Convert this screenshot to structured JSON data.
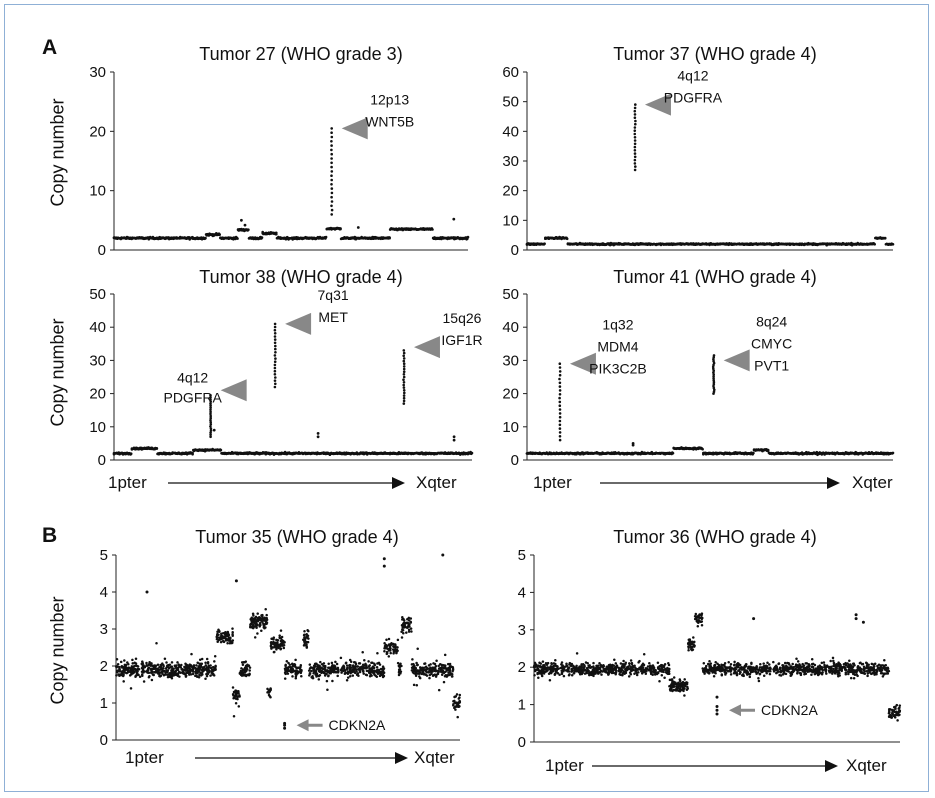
{
  "figure": {
    "panel_a_label": "A",
    "panel_b_label": "B",
    "ylabel": "Copy number",
    "start_label": "1pter",
    "end_label": "Xqter",
    "marker_color": "#111111",
    "arrowhead_color": "#888888"
  },
  "chart_data": [
    {
      "type": "scatter",
      "title": "Tumor 27 (WHO grade 3)",
      "ylabel": "Copy number",
      "ylim": [
        0,
        30
      ],
      "yticks": [
        0,
        10,
        20,
        30
      ],
      "xlim": [
        0,
        1
      ],
      "baseline": {
        "level": 2,
        "noise": 0.3,
        "segments": [
          [
            0.26,
            0.3,
            2.6
          ],
          [
            0.35,
            0.38,
            3.4
          ],
          [
            0.42,
            0.46,
            2.8
          ],
          [
            0.6,
            0.64,
            3.6
          ],
          [
            0.78,
            0.9,
            3.5
          ]
        ]
      },
      "scattered": [
        [
          0.36,
          5.0
        ],
        [
          0.37,
          4.2
        ],
        [
          0.96,
          5.2
        ],
        [
          0.69,
          3.8
        ]
      ],
      "amplicons": [
        {
          "x": 0.615,
          "ymin": 6,
          "ymax": 20.5,
          "label": [
            "12p13",
            "WNT5B"
          ],
          "arrow_y": 20.5
        }
      ]
    },
    {
      "type": "scatter",
      "title": "Tumor 37 (WHO grade 4)",
      "ylabel": "",
      "ylim": [
        0,
        60
      ],
      "yticks": [
        0,
        10,
        20,
        30,
        40,
        50,
        60
      ],
      "xlim": [
        0,
        1
      ],
      "baseline": {
        "level": 2,
        "noise": 0.5,
        "segments": [
          [
            0.05,
            0.11,
            4.0
          ],
          [
            0.95,
            0.98,
            4.0
          ]
        ]
      },
      "scattered": [],
      "amplicons": [
        {
          "x": 0.295,
          "ymin": 27,
          "ymax": 49,
          "label": [
            "4q12",
            "PDGFRA"
          ],
          "arrow_y": 49
        }
      ]
    },
    {
      "type": "scatter",
      "title": "Tumor 38 (WHO grade 4)",
      "ylabel": "Copy number",
      "ylim": [
        0,
        50
      ],
      "yticks": [
        0,
        10,
        20,
        30,
        40,
        50
      ],
      "xlim": [
        0,
        1
      ],
      "baseline": {
        "level": 2,
        "noise": 0.5,
        "segments": [
          [
            0.05,
            0.12,
            3.5
          ],
          [
            0.22,
            0.3,
            3.0
          ]
        ]
      },
      "scattered": [
        [
          0.57,
          8.0
        ],
        [
          0.57,
          7.0
        ],
        [
          0.95,
          7.0
        ],
        [
          0.95,
          6.0
        ],
        [
          0.28,
          9.0
        ]
      ],
      "amplicons": [
        {
          "x": 0.27,
          "ymin": 7,
          "ymax": 19.5,
          "label": [
            "4q12",
            "PDGFRA"
          ],
          "arrow_y": 21
        },
        {
          "x": 0.45,
          "ymin": 22,
          "ymax": 41,
          "label": [
            "7q31",
            "MET"
          ],
          "arrow_y": 41
        },
        {
          "x": 0.81,
          "ymin": 17,
          "ymax": 33,
          "label": [
            "15q26",
            "IGF1R"
          ],
          "arrow_y": 34
        }
      ]
    },
    {
      "type": "scatter",
      "title": "Tumor 41 (WHO grade 4)",
      "ylabel": "",
      "ylim": [
        0,
        50
      ],
      "yticks": [
        0,
        10,
        20,
        30,
        40,
        50
      ],
      "xlim": [
        0,
        1
      ],
      "baseline": {
        "level": 2,
        "noise": 0.5,
        "segments": [
          [
            0.4,
            0.48,
            3.5
          ],
          [
            0.62,
            0.66,
            3.0
          ]
        ]
      },
      "scattered": [
        [
          0.29,
          5.0
        ],
        [
          0.29,
          4.5
        ]
      ],
      "amplicons": [
        {
          "x": 0.09,
          "ymin": 6,
          "ymax": 29,
          "label": [
            "1q32",
            "MDM4",
            "PIK3C2B"
          ],
          "arrow_y": 29
        },
        {
          "x": 0.51,
          "ymin": 20,
          "ymax": 31.5,
          "label": [
            "8q24",
            "CMYC",
            "PVT1"
          ],
          "arrow_y": 30
        }
      ]
    },
    {
      "type": "scatter",
      "title": "Tumor 35 (WHO grade 4)",
      "ylabel": "Copy number",
      "ylim": [
        0,
        5
      ],
      "yticks": [
        0,
        1,
        2,
        3,
        4,
        5
      ],
      "xlim": [
        0,
        1
      ],
      "dense": {
        "level": 1.9,
        "spread": 0.35,
        "outliers": 0.75
      },
      "segments": [
        [
          0.29,
          0.34,
          2.8
        ],
        [
          0.39,
          0.44,
          3.2
        ],
        [
          0.45,
          0.49,
          2.6
        ],
        [
          0.54,
          0.56,
          2.7
        ],
        [
          0.78,
          0.82,
          2.5
        ],
        [
          0.83,
          0.86,
          3.1
        ]
      ],
      "dips": [
        [
          0.34,
          0.36,
          1.2
        ],
        [
          0.44,
          0.45,
          1.3
        ],
        [
          0.98,
          1.0,
          1.0
        ]
      ],
      "points": [
        [
          0.49,
          0.4
        ],
        [
          0.49,
          0.32
        ],
        [
          0.49,
          0.45
        ],
        [
          0.09,
          4.0
        ],
        [
          0.35,
          4.3
        ],
        [
          0.78,
          4.9
        ],
        [
          0.78,
          4.7
        ],
        [
          0.95,
          5.0
        ]
      ],
      "annotation": {
        "label": "CDKN2A",
        "x": 0.49,
        "y": 0.4
      }
    },
    {
      "type": "scatter",
      "title": "Tumor 36 (WHO grade 4)",
      "ylabel": "",
      "ylim": [
        0,
        5
      ],
      "yticks": [
        0,
        1,
        2,
        3,
        4,
        5
      ],
      "xlim": [
        0,
        1
      ],
      "dense": {
        "level": 1.95,
        "spread": 0.28,
        "outliers": 0.55
      },
      "segments": [
        [
          0.42,
          0.44,
          2.6
        ],
        [
          0.44,
          0.46,
          3.3
        ]
      ],
      "dips": [
        [
          0.37,
          0.42,
          1.5
        ],
        [
          0.97,
          1.0,
          0.8
        ]
      ],
      "points": [
        [
          0.5,
          0.85
        ],
        [
          0.5,
          0.75
        ],
        [
          0.5,
          0.95
        ],
        [
          0.5,
          1.2
        ],
        [
          0.88,
          3.4
        ],
        [
          0.88,
          3.3
        ],
        [
          0.9,
          3.2
        ],
        [
          0.6,
          3.3
        ]
      ],
      "annotation": {
        "label": "CDKN2A",
        "x": 0.5,
        "y": 0.85
      }
    }
  ]
}
